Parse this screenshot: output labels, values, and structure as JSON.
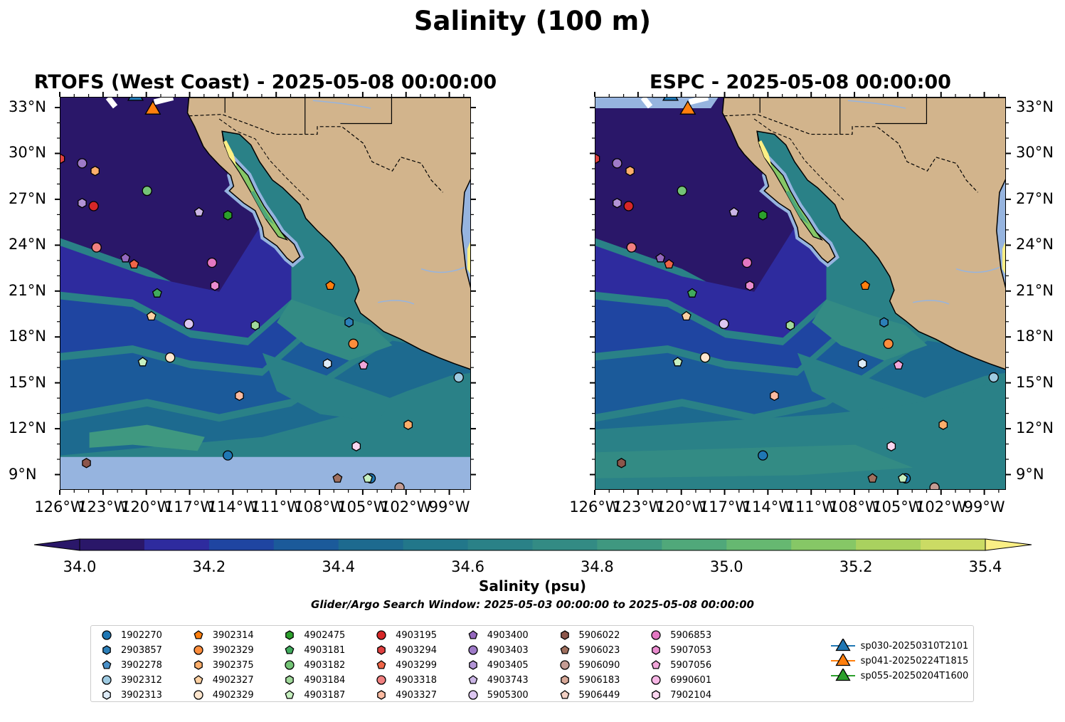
{
  "title": "Salinity (100 m)",
  "panels": [
    {
      "id": "rtofs",
      "title": "RTOFS (West Coast) - 2025-05-08 00:00:00"
    },
    {
      "id": "espc",
      "title": "ESPC - 2025-05-08 00:00:00"
    }
  ],
  "lat_labels": [
    "33°N",
    "30°N",
    "27°N",
    "24°N",
    "21°N",
    "18°N",
    "15°N",
    "12°N",
    "9°N"
  ],
  "lat_values": [
    33,
    30,
    27,
    24,
    21,
    18,
    15,
    12,
    9
  ],
  "lon_labels": [
    "126°W",
    "123°W",
    "120°W",
    "117°W",
    "114°W",
    "111°W",
    "108°W",
    "105°W",
    "102°W",
    "99°W"
  ],
  "lon_values": [
    -126,
    -123,
    -120,
    -117,
    -114,
    -111,
    -108,
    -105,
    -102,
    -99
  ],
  "extent": {
    "lon": [
      -126,
      -97.5
    ],
    "lat": [
      8,
      33.7
    ]
  },
  "colorbar": {
    "label": "Salinity (psu)",
    "ticks": [
      "34.0",
      "34.2",
      "34.4",
      "34.6",
      "34.8",
      "35.0",
      "35.2",
      "35.4"
    ],
    "range": [
      34.0,
      35.4
    ],
    "colors": [
      "#2a1769",
      "#2e2b9e",
      "#1f45a1",
      "#1b5a9a",
      "#1d6a8f",
      "#22778a",
      "#2a8187",
      "#338b84",
      "#3f9880",
      "#50a87a",
      "#66b871",
      "#86c766",
      "#a9d15f",
      "#cbdb64",
      "#faef85"
    ]
  },
  "search_window": "Glider/Argo Search Window: 2025-05-03 00:00:00 to 2025-05-08 00:00:00",
  "land_color": "#d2b48c",
  "nodata_color": "#96b4df",
  "legend": [
    {
      "label": "1902270",
      "marker": "circle",
      "color": "#1f77b4"
    },
    {
      "label": "2903857",
      "marker": "hexagon",
      "color": "#2c7fb8"
    },
    {
      "label": "3902278",
      "marker": "pentagon",
      "color": "#4a90c8"
    },
    {
      "label": "3902312",
      "marker": "circle",
      "color": "#9ecae1"
    },
    {
      "label": "3902313",
      "marker": "hexagon",
      "color": "#deebf7"
    },
    {
      "label": "3902314",
      "marker": "pentagon",
      "color": "#ff7f0e"
    },
    {
      "label": "3902329",
      "marker": "circle",
      "color": "#fd8d3c"
    },
    {
      "label": "3902375",
      "marker": "hexagon",
      "color": "#fdae6b"
    },
    {
      "label": "4902327",
      "marker": "pentagon",
      "color": "#fdd0a2"
    },
    {
      "label": "4902329",
      "marker": "circle",
      "color": "#fee6ce"
    },
    {
      "label": "4902475",
      "marker": "hexagon",
      "color": "#2ca02c"
    },
    {
      "label": "4903181",
      "marker": "pentagon",
      "color": "#41ab5d"
    },
    {
      "label": "4903182",
      "marker": "circle",
      "color": "#74c476"
    },
    {
      "label": "4903184",
      "marker": "hexagon",
      "color": "#a1d99b"
    },
    {
      "label": "4903187",
      "marker": "pentagon",
      "color": "#c7f0c0"
    },
    {
      "label": "4903195",
      "marker": "circle",
      "color": "#d62728"
    },
    {
      "label": "4903294",
      "marker": "hexagon",
      "color": "#e04040"
    },
    {
      "label": "4903299",
      "marker": "pentagon",
      "color": "#ef6548"
    },
    {
      "label": "4903318",
      "marker": "circle",
      "color": "#f08080"
    },
    {
      "label": "4903327",
      "marker": "hexagon",
      "color": "#fcbba1"
    },
    {
      "label": "4903400",
      "marker": "pentagon",
      "color": "#9467bd"
    },
    {
      "label": "4903403",
      "marker": "circle",
      "color": "#9e7ac8"
    },
    {
      "label": "4903405",
      "marker": "hexagon",
      "color": "#b294d6"
    },
    {
      "label": "4903743",
      "marker": "pentagon",
      "color": "#cbb6e6"
    },
    {
      "label": "5905300",
      "marker": "circle",
      "color": "#dcc6f0"
    },
    {
      "label": "5906022",
      "marker": "hexagon",
      "color": "#8c564b"
    },
    {
      "label": "5906023",
      "marker": "pentagon",
      "color": "#a0705f"
    },
    {
      "label": "5906090",
      "marker": "circle",
      "color": "#c49c94"
    },
    {
      "label": "5906183",
      "marker": "hexagon",
      "color": "#d7a898"
    },
    {
      "label": "5906449",
      "marker": "pentagon",
      "color": "#f2d0c4"
    },
    {
      "label": "5906853",
      "marker": "circle",
      "color": "#e377c2"
    },
    {
      "label": "5907053",
      "marker": "hexagon",
      "color": "#ea8ccf"
    },
    {
      "label": "5907056",
      "marker": "pentagon",
      "color": "#f2a6da"
    },
    {
      "label": "6990601",
      "marker": "circle",
      "color": "#f7b6e5"
    },
    {
      "label": "7902104",
      "marker": "hexagon",
      "color": "#fbd6f0"
    },
    {
      "label": "sp030-20250310T2101",
      "marker": "triangle",
      "color": "#1f77b4"
    },
    {
      "label": "sp041-20250224T1815",
      "marker": "triangle",
      "color": "#ff7f0e"
    },
    {
      "label": "sp055-20250204T1600",
      "marker": "triangle",
      "color": "#2ca02c"
    }
  ],
  "floats": [
    {
      "id": "1902270",
      "lon": -104.5,
      "lat": 8.8
    },
    {
      "id": "4903195",
      "lon": -123.7,
      "lat": 26.6
    },
    {
      "id": "4903403",
      "lon": -124.5,
      "lat": 29.4
    },
    {
      "id": "4903294",
      "lon": -126.0,
      "lat": 29.7
    },
    {
      "id": "3902375",
      "lon": -123.6,
      "lat": 28.9
    },
    {
      "id": "4903405",
      "lon": -124.5,
      "lat": 26.8
    },
    {
      "id": "4903182",
      "lon": -120.0,
      "lat": 27.6
    },
    {
      "id": "4903743",
      "lon": -116.4,
      "lat": 26.2
    },
    {
      "id": "4902475",
      "lon": -114.4,
      "lat": 26.0
    },
    {
      "id": "4903318",
      "lon": -123.5,
      "lat": 23.9
    },
    {
      "id": "4903400",
      "lon": -121.5,
      "lat": 23.2
    },
    {
      "id": "4903299",
      "lon": -120.9,
      "lat": 22.8
    },
    {
      "id": "5906853",
      "lon": -115.5,
      "lat": 22.9
    },
    {
      "id": "5907053",
      "lon": -115.3,
      "lat": 21.4
    },
    {
      "id": "4903181",
      "lon": -119.3,
      "lat": 20.9
    },
    {
      "id": "3902314",
      "lon": -107.3,
      "lat": 21.4
    },
    {
      "id": "4902327",
      "lon": -119.7,
      "lat": 19.4
    },
    {
      "id": "5905300",
      "lon": -117.1,
      "lat": 18.9
    },
    {
      "id": "4903184",
      "lon": -112.5,
      "lat": 18.8
    },
    {
      "id": "2903857",
      "lon": -106.0,
      "lat": 19.0
    },
    {
      "id": "3902329",
      "lon": -105.7,
      "lat": 17.6
    },
    {
      "id": "4902329",
      "lon": -118.4,
      "lat": 16.7
    },
    {
      "id": "4903187",
      "lon": -120.3,
      "lat": 16.4
    },
    {
      "id": "3902313",
      "lon": -107.5,
      "lat": 16.3
    },
    {
      "id": "5907056",
      "lon": -105.0,
      "lat": 16.2
    },
    {
      "id": "3902312",
      "lon": -98.4,
      "lat": 15.4
    },
    {
      "id": "4903327",
      "lon": -113.6,
      "lat": 14.2
    },
    {
      "id": "3902375b",
      "lon": -101.9,
      "lat": 12.3
    },
    {
      "id": "7902104",
      "lon": -105.5,
      "lat": 10.9
    },
    {
      "id": "5906022",
      "lon": -124.2,
      "lat": 9.8
    },
    {
      "id": "1902270b",
      "lon": -114.4,
      "lat": 10.3
    },
    {
      "id": "5906023",
      "lon": -106.8,
      "lat": 8.8
    },
    {
      "id": "5906090",
      "lon": -102.5,
      "lat": 8.2
    },
    {
      "id": "4903187b",
      "lon": -104.7,
      "lat": 8.8
    }
  ],
  "gliders": [
    {
      "id": "sp055-20250204T1600",
      "lon": -121.5,
      "lat": 34.0
    },
    {
      "id": "sp030-20250310T2101",
      "lon": -120.8,
      "lat": 33.8
    },
    {
      "id": "sp041-20250224T1815",
      "lon": -119.6,
      "lat": 32.9
    }
  ]
}
